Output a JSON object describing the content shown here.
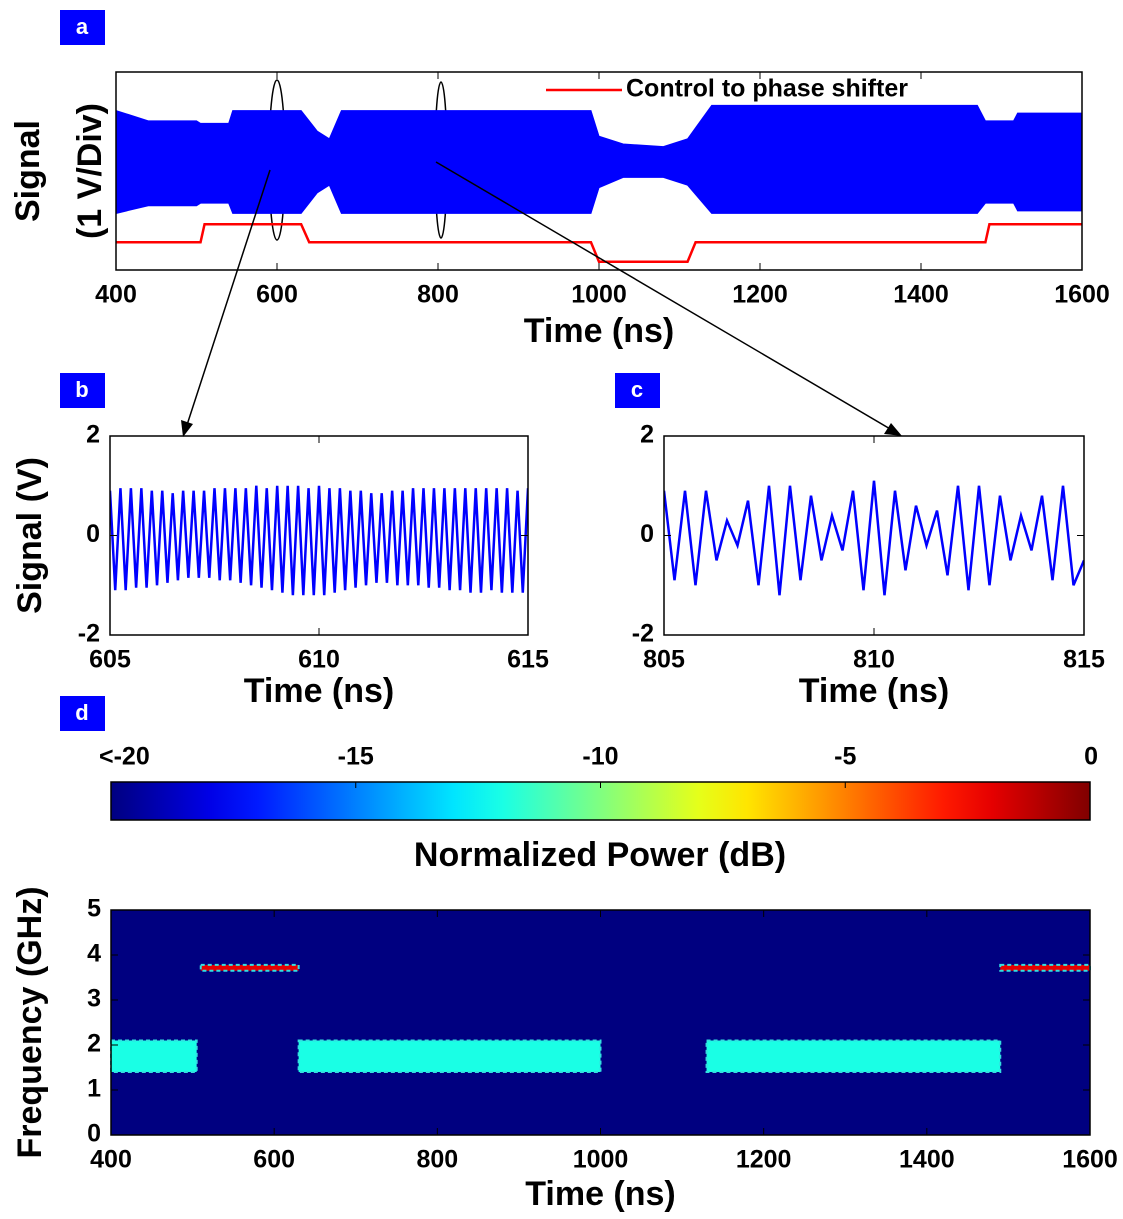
{
  "chart_data": [
    {
      "type": "envelope",
      "panel_label": "a",
      "x_label": "Time (ns)",
      "y_label": [
        "Signal",
        "(1 V/Div)"
      ],
      "xlim": [
        400,
        1600
      ],
      "xticks": [
        400,
        600,
        800,
        1000,
        1200,
        1400,
        1600
      ],
      "ylim": [
        -2.1,
        1.75
      ],
      "envelope": {
        "color": "#0000ff",
        "x": [
          400,
          440,
          500,
          505,
          540,
          545,
          630,
          650,
          665,
          680,
          990,
          1000,
          1030,
          1080,
          1110,
          1140,
          1470,
          1480,
          1515,
          1520,
          1600
        ],
        "upper": [
          1.0,
          0.8,
          0.8,
          0.75,
          0.75,
          1.0,
          1.0,
          0.6,
          0.45,
          1.0,
          1.0,
          0.5,
          0.35,
          0.3,
          0.45,
          1.1,
          1.1,
          0.8,
          0.8,
          0.95,
          0.95
        ],
        "lower": [
          -1.0,
          -0.85,
          -0.85,
          -0.8,
          -0.8,
          -1.0,
          -1.0,
          -0.6,
          -0.45,
          -1.0,
          -1.0,
          -0.5,
          -0.3,
          -0.3,
          -0.45,
          -1.0,
          -1.0,
          -0.8,
          -0.8,
          -0.95,
          -0.95
        ]
      },
      "series": [
        {
          "name": "Control to phase shifter",
          "color": "#ff0000",
          "x": [
            400,
            505,
            510,
            630,
            640,
            990,
            1000,
            1110,
            1120,
            1480,
            1485,
            1600
          ],
          "values": [
            -1.56,
            -1.56,
            -1.21,
            -1.21,
            -1.56,
            -1.56,
            -1.94,
            -1.94,
            -1.56,
            -1.56,
            -1.21,
            -1.21
          ]
        }
      ]
    },
    {
      "type": "line",
      "panel_label": "b",
      "x_label": "Time (ns)",
      "y_label": "Signal (V)",
      "xlim": [
        605,
        615
      ],
      "xticks": [
        605,
        610,
        615
      ],
      "ylim": [
        -2,
        2
      ],
      "yticks": [
        -2,
        0,
        2
      ],
      "series": [
        {
          "color": "#0000ff",
          "x": [
            605,
            605.125,
            605.25,
            605.375,
            605.5,
            605.625,
            605.75,
            605.875,
            606,
            606.125,
            606.25,
            606.375,
            606.5,
            606.625,
            606.75,
            606.875,
            607,
            607.125,
            607.25,
            607.375,
            607.5,
            607.625,
            607.75,
            607.875,
            608,
            608.125,
            608.25,
            608.375,
            608.5,
            608.625,
            608.75,
            608.875,
            609,
            609.125,
            609.25,
            609.375,
            609.5,
            609.625,
            609.75,
            609.875,
            610,
            610.125,
            610.25,
            610.375,
            610.5,
            610.625,
            610.75,
            610.875,
            611,
            611.125,
            611.25,
            611.375,
            611.5,
            611.625,
            611.75,
            611.875,
            612,
            612.125,
            612.25,
            612.375,
            612.5,
            612.625,
            612.75,
            612.875,
            613,
            613.125,
            613.25,
            613.375,
            613.5,
            613.625,
            613.75,
            613.875,
            614,
            614.125,
            614.25,
            614.375,
            614.5,
            614.625,
            614.75,
            614.875,
            615
          ],
          "values": [
            0.9,
            -1.1,
            0.95,
            -1.1,
            0.95,
            -1.05,
            0.95,
            -1.05,
            0.9,
            -1.0,
            0.9,
            -0.95,
            0.85,
            -0.9,
            0.9,
            -0.85,
            0.9,
            -0.85,
            0.9,
            -0.85,
            0.95,
            -0.9,
            0.95,
            -0.9,
            0.95,
            -0.95,
            0.95,
            -1.0,
            1.0,
            -1.05,
            0.95,
            -1.1,
            1.0,
            -1.15,
            1.0,
            -1.2,
            1.0,
            -1.2,
            0.95,
            -1.2,
            1.0,
            -1.2,
            0.95,
            -1.15,
            0.95,
            -1.1,
            0.9,
            -1.05,
            0.9,
            -1.0,
            0.85,
            -0.95,
            0.85,
            -0.95,
            0.9,
            -1.0,
            0.9,
            -1.0,
            0.95,
            -1.0,
            0.95,
            -1.05,
            0.95,
            -1.05,
            0.95,
            -1.1,
            0.95,
            -1.1,
            0.95,
            -1.15,
            0.95,
            -1.15,
            0.95,
            -1.1,
            0.95,
            -1.15,
            0.95,
            -1.15,
            0.9,
            -1.15,
            0.95
          ]
        }
      ]
    },
    {
      "type": "line",
      "panel_label": "c",
      "x_label": "Time (ns)",
      "xlim": [
        805,
        815
      ],
      "xticks": [
        805,
        810,
        815
      ],
      "ylim": [
        -2,
        2
      ],
      "yticks": [
        -2,
        0,
        2
      ],
      "series": [
        {
          "color": "#0000ff",
          "x": [
            805,
            805.25,
            805.5,
            805.75,
            806,
            806.25,
            806.5,
            806.75,
            807,
            807.25,
            807.5,
            807.75,
            808,
            808.25,
            808.5,
            808.75,
            809,
            809.25,
            809.5,
            809.75,
            810,
            810.25,
            810.5,
            810.75,
            811,
            811.25,
            811.5,
            811.75,
            812,
            812.25,
            812.5,
            812.75,
            813,
            813.25,
            813.5,
            813.75,
            814,
            814.25,
            814.5,
            814.75,
            815
          ],
          "values": [
            0.9,
            -0.9,
            0.9,
            -1.0,
            0.9,
            -0.5,
            0.3,
            -0.2,
            0.7,
            -1.0,
            1.0,
            -1.2,
            1.0,
            -0.9,
            0.8,
            -0.5,
            0.4,
            -0.3,
            0.9,
            -1.1,
            1.1,
            -1.2,
            0.9,
            -0.7,
            0.6,
            -0.2,
            0.5,
            -0.8,
            1.0,
            -1.1,
            1.0,
            -1.0,
            0.8,
            -0.5,
            0.4,
            -0.3,
            0.8,
            -0.9,
            1.0,
            -1.0,
            -0.5
          ]
        }
      ]
    },
    {
      "type": "spectrogram",
      "panel_label": "d",
      "x_label": "Time (ns)",
      "y_label": "Frequency (GHz)",
      "xlim": [
        400,
        1600
      ],
      "xticks": [
        400,
        600,
        800,
        1000,
        1200,
        1400,
        1600
      ],
      "ylim": [
        0,
        5
      ],
      "yticks": [
        0,
        1,
        2,
        3,
        4,
        5
      ],
      "colorbar_label": "Normalized Power (dB)",
      "clim": [
        -20,
        0
      ],
      "cticks": [
        {
          "value": -20,
          "label": "<-20"
        },
        -15,
        -10,
        -5,
        0
      ],
      "background": -20,
      "regions": [
        {
          "t": [
            400,
            505
          ],
          "f": [
            1.4,
            2.1
          ],
          "value": -12
        },
        {
          "t": [
            510,
            630
          ],
          "f": [
            3.65,
            3.78
          ],
          "value": -2
        },
        {
          "t": [
            630,
            1000
          ],
          "f": [
            1.4,
            2.1
          ],
          "value": -12
        },
        {
          "t": [
            1130,
            1490
          ],
          "f": [
            1.4,
            2.1
          ],
          "value": -12
        },
        {
          "t": [
            1490,
            1600
          ],
          "f": [
            3.65,
            3.78
          ],
          "value": -2
        }
      ]
    }
  ]
}
